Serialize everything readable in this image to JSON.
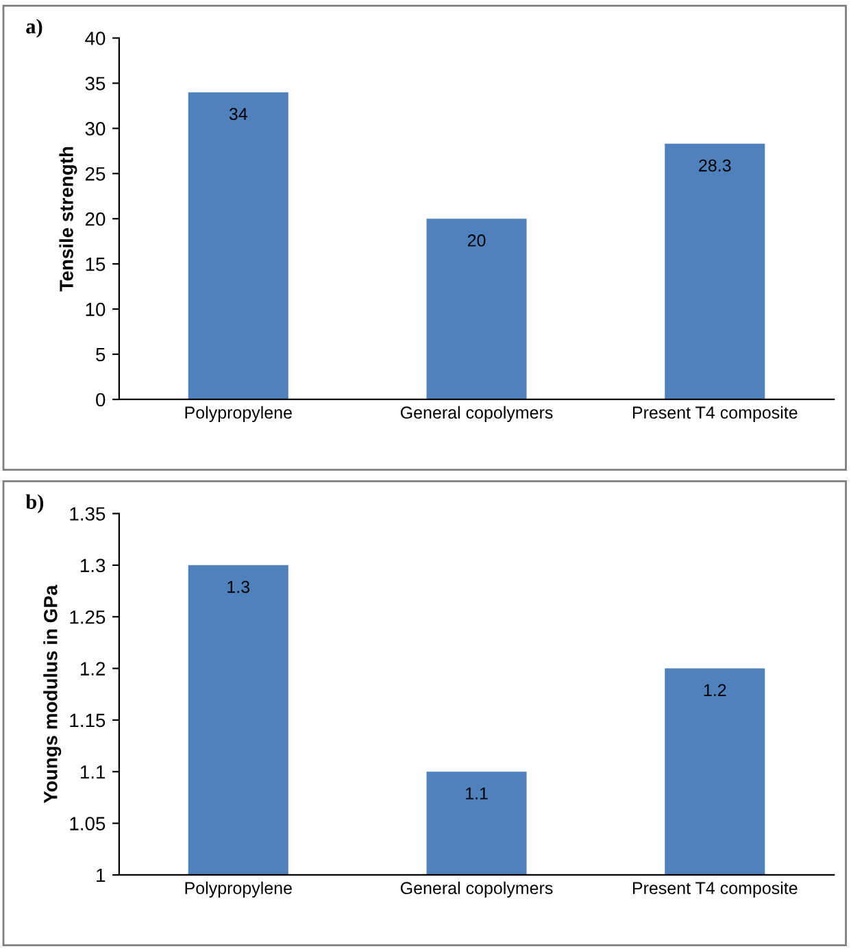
{
  "chart_data": [
    {
      "type": "bar",
      "annotations": [
        "a)"
      ],
      "ylabel": "Tensile strength",
      "categories": [
        "Polypropylene",
        "General copolymers",
        "Present T4 composite"
      ],
      "values": [
        34,
        20,
        28.3
      ],
      "color": "#4f81bd",
      "ylim": [
        0,
        40
      ],
      "yticks": [
        0,
        5,
        10,
        15,
        20,
        25,
        30,
        35,
        40
      ],
      "data_labels": true,
      "grid": false
    },
    {
      "type": "bar",
      "annotations": [
        "b)"
      ],
      "ylabel": "Youngs modulus in GPa",
      "categories": [
        "Polypropylene",
        "General copolymers",
        "Present T4 composite"
      ],
      "values": [
        1.3,
        1.1,
        1.2
      ],
      "color": "#4f81bd",
      "ylim": [
        1,
        1.35
      ],
      "yticks": [
        1,
        1.05,
        1.1,
        1.15,
        1.2,
        1.25,
        1.3,
        1.35
      ],
      "data_labels": true,
      "grid": false
    }
  ]
}
